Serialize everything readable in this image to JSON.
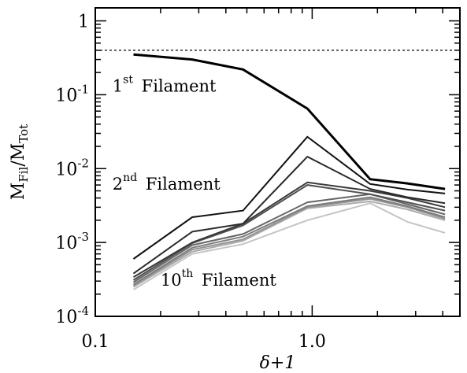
{
  "chart_data": {
    "type": "line",
    "xscale": "log",
    "yscale": "log",
    "xlim": [
      0.1,
      4.8
    ],
    "ylim": [
      0.0001,
      1.5
    ],
    "xlabel": "δ+1",
    "ylabel": {
      "base": "M",
      "num_sub": "Fil",
      "den_base": "M",
      "den_sub": "Tot"
    },
    "x_ticks": [
      {
        "value": 0.1,
        "label": "0.1"
      },
      {
        "value": 1.0,
        "label": "1.0"
      }
    ],
    "y_ticks": [
      {
        "value": 1,
        "label": "1"
      },
      {
        "value": 0.1,
        "label": "10",
        "exp": "-1"
      },
      {
        "value": 0.01,
        "label": "10",
        "exp": "-2"
      },
      {
        "value": 0.001,
        "label": "10",
        "exp": "-3"
      },
      {
        "value": 0.0001,
        "label": "10",
        "exp": "-4"
      }
    ],
    "reference_line": {
      "y": 0.4,
      "style": "dotted"
    },
    "x": [
      0.15,
      0.28,
      0.48,
      0.95,
      1.85,
      2.75,
      4.1
    ],
    "series": [
      {
        "values": [
          0.35,
          0.3,
          0.22,
          0.065,
          0.0072,
          0.0063,
          0.0053
        ],
        "color": "#000000",
        "width": 3
      },
      {
        "values": [
          0.0006,
          0.0022,
          0.0027,
          0.027,
          0.0062,
          0.0052,
          0.0046
        ],
        "color": "#111111",
        "width": 2
      },
      {
        "values": [
          0.00038,
          0.0014,
          0.0018,
          0.0145,
          0.0053,
          0.0041,
          0.0034
        ],
        "color": "#2a2a2a",
        "width": 2
      },
      {
        "values": [
          0.00034,
          0.001,
          0.0018,
          0.0065,
          0.005,
          0.004,
          0.003
        ],
        "color": "#3a3a3a",
        "width": 2
      },
      {
        "values": [
          0.00031,
          0.00098,
          0.0017,
          0.006,
          0.0045,
          0.0035,
          0.0027
        ],
        "color": "#505050",
        "width": 2
      },
      {
        "values": [
          0.00029,
          0.00092,
          0.0013,
          0.0035,
          0.0045,
          0.0033,
          0.0024
        ],
        "color": "#666666",
        "width": 2
      },
      {
        "values": [
          0.00027,
          0.00085,
          0.0012,
          0.0031,
          0.0041,
          0.0031,
          0.0022
        ],
        "color": "#7d7d7d",
        "width": 2
      },
      {
        "values": [
          0.00026,
          0.0008,
          0.0011,
          0.003,
          0.0039,
          0.003,
          0.0021
        ],
        "color": "#949494",
        "width": 2
      },
      {
        "values": [
          0.00025,
          0.00075,
          0.00105,
          0.0029,
          0.0036,
          0.0028,
          0.002
        ],
        "color": "#ababab",
        "width": 2
      },
      {
        "values": [
          0.00023,
          0.0007,
          0.00095,
          0.002,
          0.0034,
          0.0019,
          0.00135
        ],
        "color": "#c4c4c4",
        "width": 2
      }
    ],
    "annotations": [
      {
        "base": "1",
        "sup": "st",
        "text": "Filament",
        "x": 0.12,
        "y": 0.11
      },
      {
        "base": "2",
        "sup": "nd",
        "text": "Filament",
        "x": 0.12,
        "y": 0.0052
      },
      {
        "base": "10",
        "sup": "th",
        "text": "Filament",
        "x": 0.2,
        "y": 0.00026
      }
    ]
  }
}
